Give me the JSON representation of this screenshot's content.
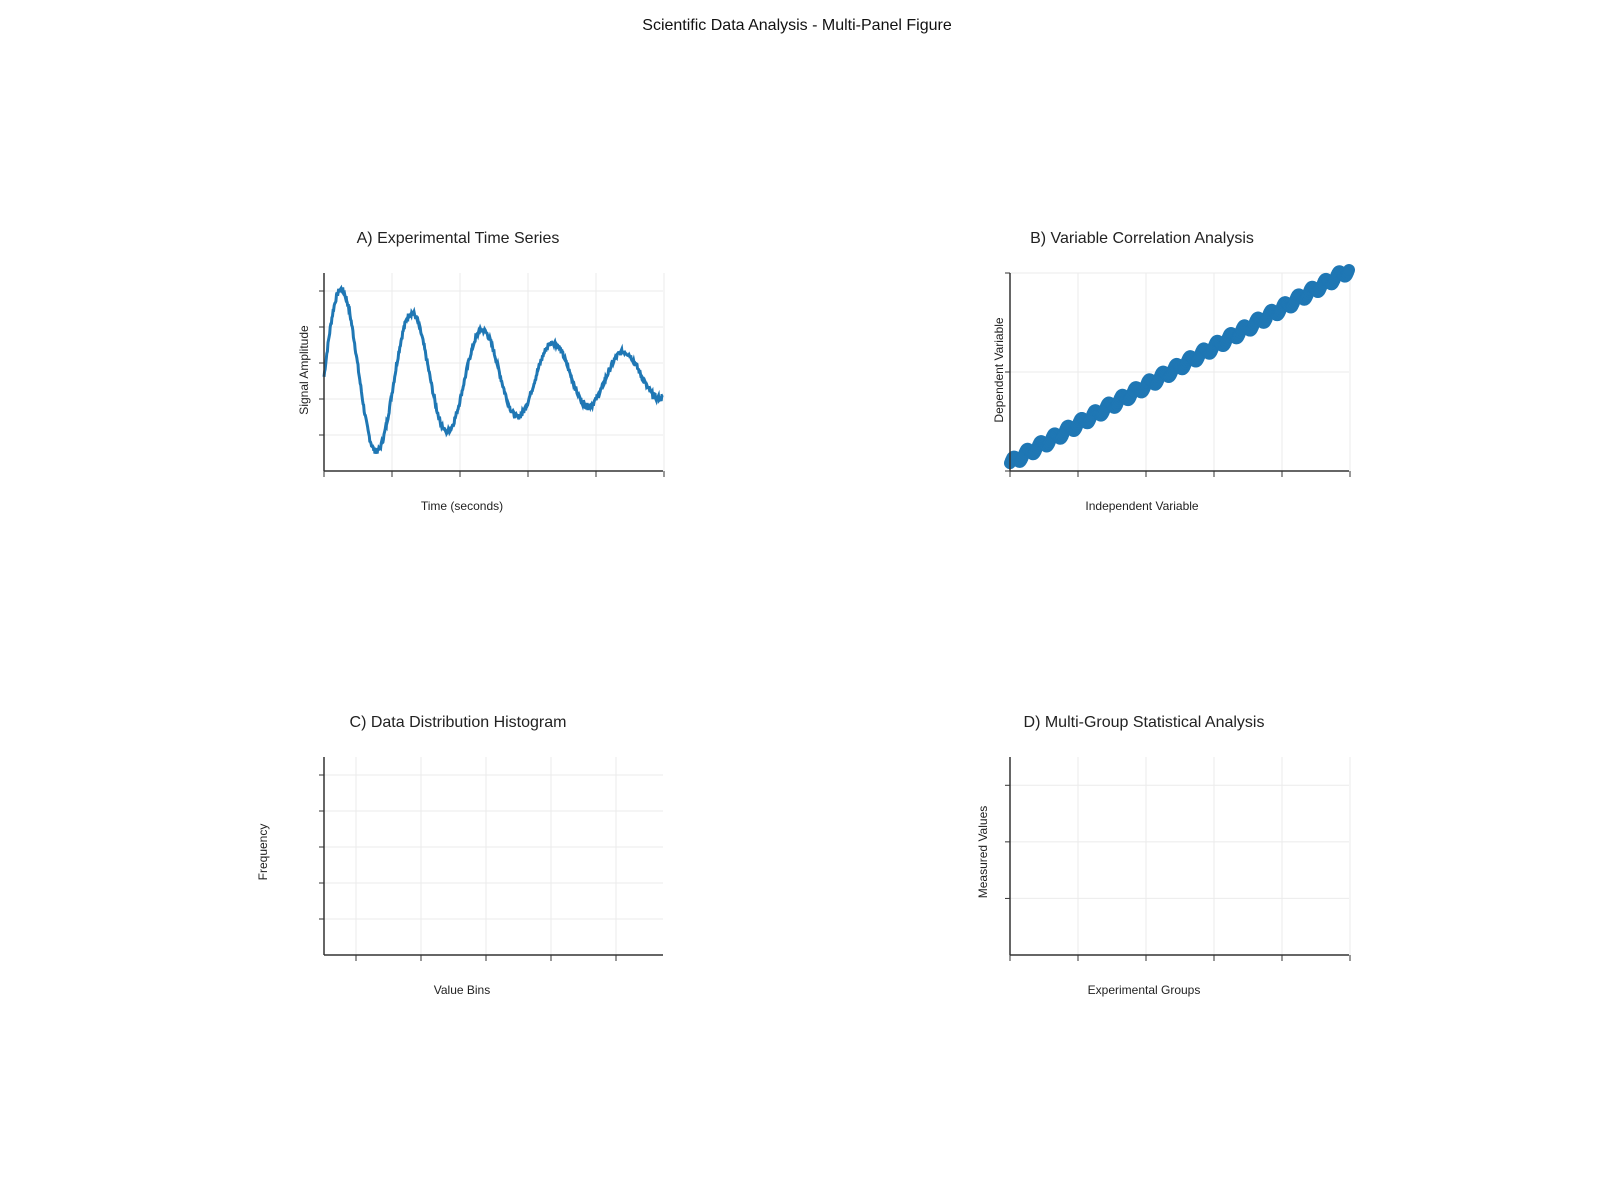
{
  "figure": {
    "title": "Scientific Data Analysis - Multi-Panel Figure"
  },
  "colors": {
    "series": "#1f77b4",
    "grid": "#ebebeb",
    "axis": "#333333",
    "background": "#ffffff"
  },
  "chart_data": [
    {
      "type": "line",
      "title": "A) Experimental Time Series",
      "xlabel": "Time (seconds)",
      "ylabel": "Signal Amplitude",
      "xlim": [
        0,
        10
      ],
      "ylim": [
        -1.0,
        1.1
      ],
      "xticks": 6,
      "yticks": 5,
      "grid": true,
      "series": [
        {
          "function": "damped-sine",
          "amplitude": 1.0,
          "decay": 0.15,
          "frequency_hz": 0.48,
          "noise": 0.03,
          "x_start": 0,
          "x_end": 10,
          "points": 600
        }
      ]
    },
    {
      "type": "scatter",
      "title": "B) Variable Correlation Analysis",
      "xlabel": "Independent Variable",
      "ylabel": "Dependent Variable",
      "xlim": [
        0,
        10
      ],
      "ylim": [
        0,
        20
      ],
      "xticks": 6,
      "yticks": 3,
      "grid": true,
      "series": [
        {
          "function": "linear-plus-sine",
          "slope": 1.95,
          "intercept": 0.8,
          "wave_amplitude": 0.45,
          "wave_period": 0.4,
          "x_start": 0,
          "x_end": 10,
          "points": 400
        }
      ]
    },
    {
      "type": "bar",
      "title": "C) Data Distribution Histogram",
      "xlabel": "Value Bins",
      "ylabel": "Frequency",
      "xticks": 5,
      "yticks": 5,
      "grid": true,
      "categories": [],
      "values": []
    },
    {
      "type": "bar",
      "title": "D) Multi-Group Statistical Analysis",
      "xlabel": "Experimental Groups",
      "ylabel": "Measured Values",
      "xticks": 6,
      "yticks": 3,
      "grid": true,
      "categories": [],
      "values": []
    }
  ]
}
